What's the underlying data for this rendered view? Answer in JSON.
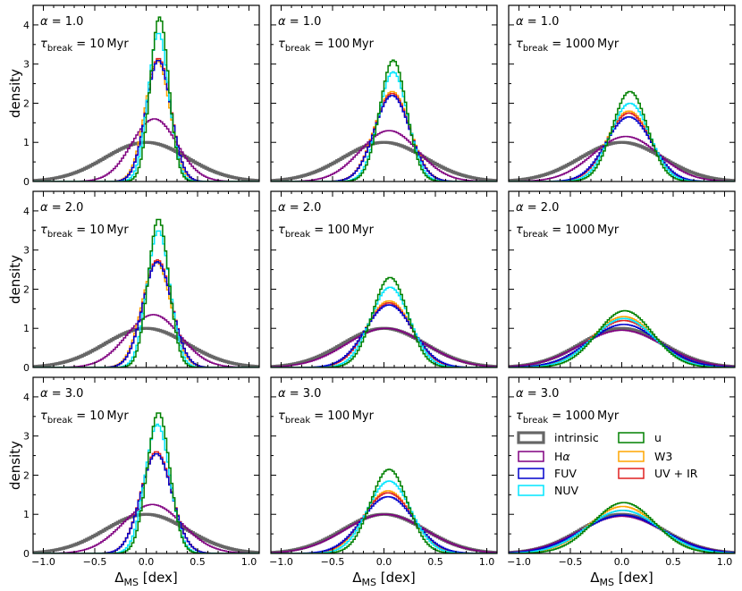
{
  "chart_data": {
    "type": "line",
    "title": "",
    "xlabel": "Δ_MS  [dex]",
    "ylabel": "density",
    "xlim": [
      -1.1,
      1.1
    ],
    "ylim": [
      0,
      4.5
    ],
    "x_ticks": [
      -1.0,
      -0.5,
      0.0,
      0.5,
      1.0
    ],
    "x_tick_labels": [
      "−1.0",
      "−0.5",
      "0.0",
      "0.5",
      "1.0"
    ],
    "y_ticks": [
      0,
      1,
      2,
      3,
      4
    ],
    "y_tick_labels": [
      "0",
      "1",
      "2",
      "3",
      "4"
    ],
    "legend_position": "bottom-right panel",
    "series_styles": [
      {
        "key": "intrinsic",
        "label": "intrinsic",
        "color": "#666666"
      },
      {
        "key": "halpha",
        "label": "Hα",
        "color": "#800080"
      },
      {
        "key": "fuv",
        "label": "FUV",
        "color": "#0000cc"
      },
      {
        "key": "nuv",
        "label": "NUV",
        "color": "#00e5ff"
      },
      {
        "key": "u",
        "label": "u",
        "color": "#008000"
      },
      {
        "key": "w3",
        "label": "W3",
        "color": "#ffa500"
      },
      {
        "key": "uvir",
        "label": "UV + IR",
        "color": "#e02020"
      }
    ],
    "panels": [
      {
        "alpha": "1.0",
        "tau": "10",
        "series": {
          "intrinsic": {
            "peak": 1.0,
            "center": 0.0,
            "sigma": 0.4
          },
          "halpha": {
            "peak": 1.6,
            "center": 0.08,
            "sigma": 0.22
          },
          "fuv": {
            "peak": 3.1,
            "center": 0.12,
            "sigma": 0.12
          },
          "nuv": {
            "peak": 3.8,
            "center": 0.12,
            "sigma": 0.1
          },
          "u": {
            "peak": 4.2,
            "center": 0.13,
            "sigma": 0.09
          },
          "w3": {
            "peak": 3.1,
            "center": 0.11,
            "sigma": 0.12
          },
          "uvir": {
            "peak": 3.15,
            "center": 0.12,
            "sigma": 0.12
          }
        }
      },
      {
        "alpha": "1.0",
        "tau": "100",
        "series": {
          "intrinsic": {
            "peak": 1.0,
            "center": 0.0,
            "sigma": 0.4
          },
          "halpha": {
            "peak": 1.3,
            "center": 0.05,
            "sigma": 0.28
          },
          "fuv": {
            "peak": 2.2,
            "center": 0.08,
            "sigma": 0.17
          },
          "nuv": {
            "peak": 2.8,
            "center": 0.09,
            "sigma": 0.14
          },
          "u": {
            "peak": 3.1,
            "center": 0.09,
            "sigma": 0.13
          },
          "w3": {
            "peak": 2.3,
            "center": 0.08,
            "sigma": 0.17
          },
          "uvir": {
            "peak": 2.25,
            "center": 0.08,
            "sigma": 0.17
          }
        }
      },
      {
        "alpha": "1.0",
        "tau": "1000",
        "series": {
          "intrinsic": {
            "peak": 1.0,
            "center": 0.0,
            "sigma": 0.4
          },
          "halpha": {
            "peak": 1.15,
            "center": 0.04,
            "sigma": 0.32
          },
          "fuv": {
            "peak": 1.65,
            "center": 0.07,
            "sigma": 0.22
          },
          "nuv": {
            "peak": 2.0,
            "center": 0.08,
            "sigma": 0.19
          },
          "u": {
            "peak": 2.3,
            "center": 0.08,
            "sigma": 0.17
          },
          "w3": {
            "peak": 1.8,
            "center": 0.07,
            "sigma": 0.21
          },
          "uvir": {
            "peak": 1.75,
            "center": 0.07,
            "sigma": 0.21
          }
        }
      },
      {
        "alpha": "2.0",
        "tau": "10",
        "series": {
          "intrinsic": {
            "peak": 1.0,
            "center": 0.0,
            "sigma": 0.4
          },
          "halpha": {
            "peak": 1.35,
            "center": 0.07,
            "sigma": 0.26
          },
          "fuv": {
            "peak": 2.7,
            "center": 0.11,
            "sigma": 0.14
          },
          "nuv": {
            "peak": 3.5,
            "center": 0.12,
            "sigma": 0.11
          },
          "u": {
            "peak": 3.8,
            "center": 0.12,
            "sigma": 0.1
          },
          "w3": {
            "peak": 2.7,
            "center": 0.1,
            "sigma": 0.14
          },
          "uvir": {
            "peak": 2.75,
            "center": 0.11,
            "sigma": 0.14
          }
        }
      },
      {
        "alpha": "2.0",
        "tau": "100",
        "series": {
          "intrinsic": {
            "peak": 1.0,
            "center": 0.0,
            "sigma": 0.4
          },
          "halpha": {
            "peak": 1.0,
            "center": 0.02,
            "sigma": 0.38
          },
          "fuv": {
            "peak": 1.6,
            "center": 0.05,
            "sigma": 0.23
          },
          "nuv": {
            "peak": 2.05,
            "center": 0.06,
            "sigma": 0.19
          },
          "u": {
            "peak": 2.3,
            "center": 0.06,
            "sigma": 0.17
          },
          "w3": {
            "peak": 1.7,
            "center": 0.05,
            "sigma": 0.22
          },
          "uvir": {
            "peak": 1.65,
            "center": 0.05,
            "sigma": 0.22
          }
        }
      },
      {
        "alpha": "2.0",
        "tau": "1000",
        "series": {
          "intrinsic": {
            "peak": 1.0,
            "center": 0.0,
            "sigma": 0.4
          },
          "halpha": {
            "peak": 0.95,
            "center": 0.0,
            "sigma": 0.4
          },
          "fuv": {
            "peak": 1.1,
            "center": 0.02,
            "sigma": 0.34
          },
          "nuv": {
            "peak": 1.25,
            "center": 0.02,
            "sigma": 0.3
          },
          "u": {
            "peak": 1.45,
            "center": 0.03,
            "sigma": 0.27
          },
          "w3": {
            "peak": 1.3,
            "center": 0.02,
            "sigma": 0.3
          },
          "uvir": {
            "peak": 1.2,
            "center": 0.02,
            "sigma": 0.32
          }
        }
      },
      {
        "alpha": "3.0",
        "tau": "10",
        "series": {
          "intrinsic": {
            "peak": 1.0,
            "center": 0.0,
            "sigma": 0.4
          },
          "halpha": {
            "peak": 1.25,
            "center": 0.06,
            "sigma": 0.29
          },
          "fuv": {
            "peak": 2.55,
            "center": 0.1,
            "sigma": 0.15
          },
          "nuv": {
            "peak": 3.3,
            "center": 0.11,
            "sigma": 0.12
          },
          "u": {
            "peak": 3.6,
            "center": 0.12,
            "sigma": 0.11
          },
          "w3": {
            "peak": 2.55,
            "center": 0.1,
            "sigma": 0.15
          },
          "uvir": {
            "peak": 2.6,
            "center": 0.1,
            "sigma": 0.15
          }
        }
      },
      {
        "alpha": "3.0",
        "tau": "100",
        "series": {
          "intrinsic": {
            "peak": 1.0,
            "center": 0.0,
            "sigma": 0.4
          },
          "halpha": {
            "peak": 1.0,
            "center": 0.01,
            "sigma": 0.39
          },
          "fuv": {
            "peak": 1.45,
            "center": 0.04,
            "sigma": 0.25
          },
          "nuv": {
            "peak": 1.85,
            "center": 0.05,
            "sigma": 0.21
          },
          "u": {
            "peak": 2.15,
            "center": 0.05,
            "sigma": 0.18
          },
          "w3": {
            "peak": 1.6,
            "center": 0.04,
            "sigma": 0.23
          },
          "uvir": {
            "peak": 1.55,
            "center": 0.04,
            "sigma": 0.24
          }
        }
      },
      {
        "alpha": "3.0",
        "tau": "1000",
        "series": {
          "intrinsic": {
            "peak": 1.0,
            "center": 0.0,
            "sigma": 0.4
          },
          "halpha": {
            "peak": 0.95,
            "center": 0.0,
            "sigma": 0.41
          },
          "fuv": {
            "peak": 0.98,
            "center": 0.01,
            "sigma": 0.39
          },
          "nuv": {
            "peak": 1.1,
            "center": 0.01,
            "sigma": 0.35
          },
          "u": {
            "peak": 1.3,
            "center": 0.02,
            "sigma": 0.3
          },
          "w3": {
            "peak": 1.2,
            "center": 0.01,
            "sigma": 0.33
          },
          "uvir": {
            "peak": 1.1,
            "center": 0.01,
            "sigma": 0.35
          }
        }
      }
    ]
  }
}
